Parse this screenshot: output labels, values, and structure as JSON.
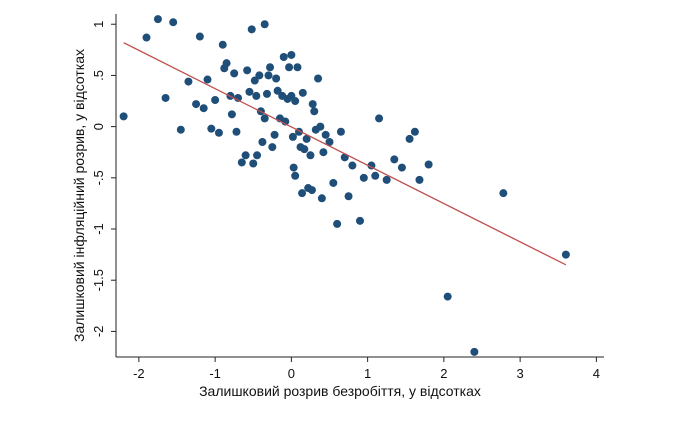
{
  "colors": {
    "background": "#ffffff",
    "axis": "#222222",
    "point": "#1f4e79",
    "fit_line": "#c0504d"
  },
  "chart_data": {
    "type": "scatter",
    "title": "",
    "xlabel": "Залишковий розрив безробіття, у відсотках",
    "ylabel": "Залишковий інфляційний розрив, у відсотках",
    "xlim": [
      -2.3,
      4.1
    ],
    "ylim": [
      -2.25,
      1.1
    ],
    "xticks": [
      -2,
      -1,
      0,
      1,
      2,
      3,
      4
    ],
    "xtick_labels": [
      "-2",
      "-1",
      "0",
      "1",
      "2",
      "3",
      "4"
    ],
    "yticks": [
      1,
      0.5,
      0,
      -0.5,
      -1,
      -1.5,
      -2
    ],
    "ytick_labels": [
      "1",
      ".5",
      "0",
      "-.5",
      "-1",
      "-1.5",
      "-2"
    ],
    "grid": false,
    "legend": "none",
    "fit_line": {
      "x": [
        -2.2,
        3.6
      ],
      "y": [
        0.82,
        -1.35
      ]
    },
    "points": [
      {
        "x": -2.2,
        "y": 0.1
      },
      {
        "x": -1.9,
        "y": 0.87
      },
      {
        "x": -1.75,
        "y": 1.05
      },
      {
        "x": -1.65,
        "y": 0.28
      },
      {
        "x": -1.55,
        "y": 1.02
      },
      {
        "x": -1.45,
        "y": -0.03
      },
      {
        "x": -1.35,
        "y": 0.44
      },
      {
        "x": -1.25,
        "y": 0.22
      },
      {
        "x": -1.2,
        "y": 0.88
      },
      {
        "x": -1.15,
        "y": 0.18
      },
      {
        "x": -1.1,
        "y": 0.46
      },
      {
        "x": -1.05,
        "y": -0.02
      },
      {
        "x": -1.0,
        "y": 0.26
      },
      {
        "x": -0.95,
        "y": -0.06
      },
      {
        "x": -0.9,
        "y": 0.8
      },
      {
        "x": -0.88,
        "y": 0.57
      },
      {
        "x": -0.85,
        "y": 0.62
      },
      {
        "x": -0.8,
        "y": 0.3
      },
      {
        "x": -0.78,
        "y": 0.12
      },
      {
        "x": -0.75,
        "y": 0.52
      },
      {
        "x": -0.72,
        "y": -0.05
      },
      {
        "x": -0.7,
        "y": 0.28
      },
      {
        "x": -0.65,
        "y": -0.35
      },
      {
        "x": -0.6,
        "y": -0.28
      },
      {
        "x": -0.58,
        "y": 0.55
      },
      {
        "x": -0.55,
        "y": 0.34
      },
      {
        "x": -0.52,
        "y": 0.95
      },
      {
        "x": -0.5,
        "y": -0.36
      },
      {
        "x": -0.48,
        "y": 0.45
      },
      {
        "x": -0.46,
        "y": 0.3
      },
      {
        "x": -0.45,
        "y": -0.28
      },
      {
        "x": -0.42,
        "y": 0.5
      },
      {
        "x": -0.4,
        "y": 0.15
      },
      {
        "x": -0.38,
        "y": -0.15
      },
      {
        "x": -0.35,
        "y": 1.0
      },
      {
        "x": -0.35,
        "y": 0.08
      },
      {
        "x": -0.32,
        "y": 0.32
      },
      {
        "x": -0.3,
        "y": 0.5
      },
      {
        "x": -0.28,
        "y": 0.58
      },
      {
        "x": -0.25,
        "y": -0.2
      },
      {
        "x": -0.22,
        "y": -0.08
      },
      {
        "x": -0.2,
        "y": 0.47
      },
      {
        "x": -0.18,
        "y": 0.35
      },
      {
        "x": -0.15,
        "y": 0.08
      },
      {
        "x": -0.12,
        "y": 0.3
      },
      {
        "x": -0.1,
        "y": 0.68
      },
      {
        "x": -0.08,
        "y": 0.05
      },
      {
        "x": -0.05,
        "y": 0.27
      },
      {
        "x": -0.03,
        "y": 0.58
      },
      {
        "x": 0.0,
        "y": 0.7
      },
      {
        "x": 0.0,
        "y": 0.3
      },
      {
        "x": 0.02,
        "y": -0.1
      },
      {
        "x": 0.03,
        "y": -0.4
      },
      {
        "x": 0.05,
        "y": 0.25
      },
      {
        "x": 0.05,
        "y": -0.48
      },
      {
        "x": 0.08,
        "y": 0.58
      },
      {
        "x": 0.1,
        "y": -0.05
      },
      {
        "x": 0.12,
        "y": -0.2
      },
      {
        "x": 0.14,
        "y": -0.65
      },
      {
        "x": 0.15,
        "y": 0.33
      },
      {
        "x": 0.17,
        "y": -0.22
      },
      {
        "x": 0.2,
        "y": -0.12
      },
      {
        "x": 0.22,
        "y": -0.6
      },
      {
        "x": 0.25,
        "y": -0.28
      },
      {
        "x": 0.27,
        "y": -0.62
      },
      {
        "x": 0.28,
        "y": 0.22
      },
      {
        "x": 0.3,
        "y": 0.15
      },
      {
        "x": 0.32,
        "y": -0.03
      },
      {
        "x": 0.35,
        "y": 0.47
      },
      {
        "x": 0.38,
        "y": 0.0
      },
      {
        "x": 0.4,
        "y": -0.7
      },
      {
        "x": 0.42,
        "y": -0.25
      },
      {
        "x": 0.45,
        "y": -0.08
      },
      {
        "x": 0.5,
        "y": -0.15
      },
      {
        "x": 0.55,
        "y": -0.55
      },
      {
        "x": 0.6,
        "y": -0.95
      },
      {
        "x": 0.65,
        "y": -0.05
      },
      {
        "x": 0.7,
        "y": -0.3
      },
      {
        "x": 0.75,
        "y": -0.68
      },
      {
        "x": 0.8,
        "y": -0.38
      },
      {
        "x": 0.9,
        "y": -0.92
      },
      {
        "x": 0.95,
        "y": -0.5
      },
      {
        "x": 1.05,
        "y": -0.38
      },
      {
        "x": 1.1,
        "y": -0.48
      },
      {
        "x": 1.15,
        "y": 0.08
      },
      {
        "x": 1.25,
        "y": -0.52
      },
      {
        "x": 1.35,
        "y": -0.32
      },
      {
        "x": 1.45,
        "y": -0.4
      },
      {
        "x": 1.55,
        "y": -0.12
      },
      {
        "x": 1.62,
        "y": -0.05
      },
      {
        "x": 1.68,
        "y": -0.52
      },
      {
        "x": 1.8,
        "y": -0.37
      },
      {
        "x": 2.05,
        "y": -1.66
      },
      {
        "x": 2.4,
        "y": -2.2
      },
      {
        "x": 2.78,
        "y": -0.65
      },
      {
        "x": 3.6,
        "y": -1.25
      }
    ]
  }
}
